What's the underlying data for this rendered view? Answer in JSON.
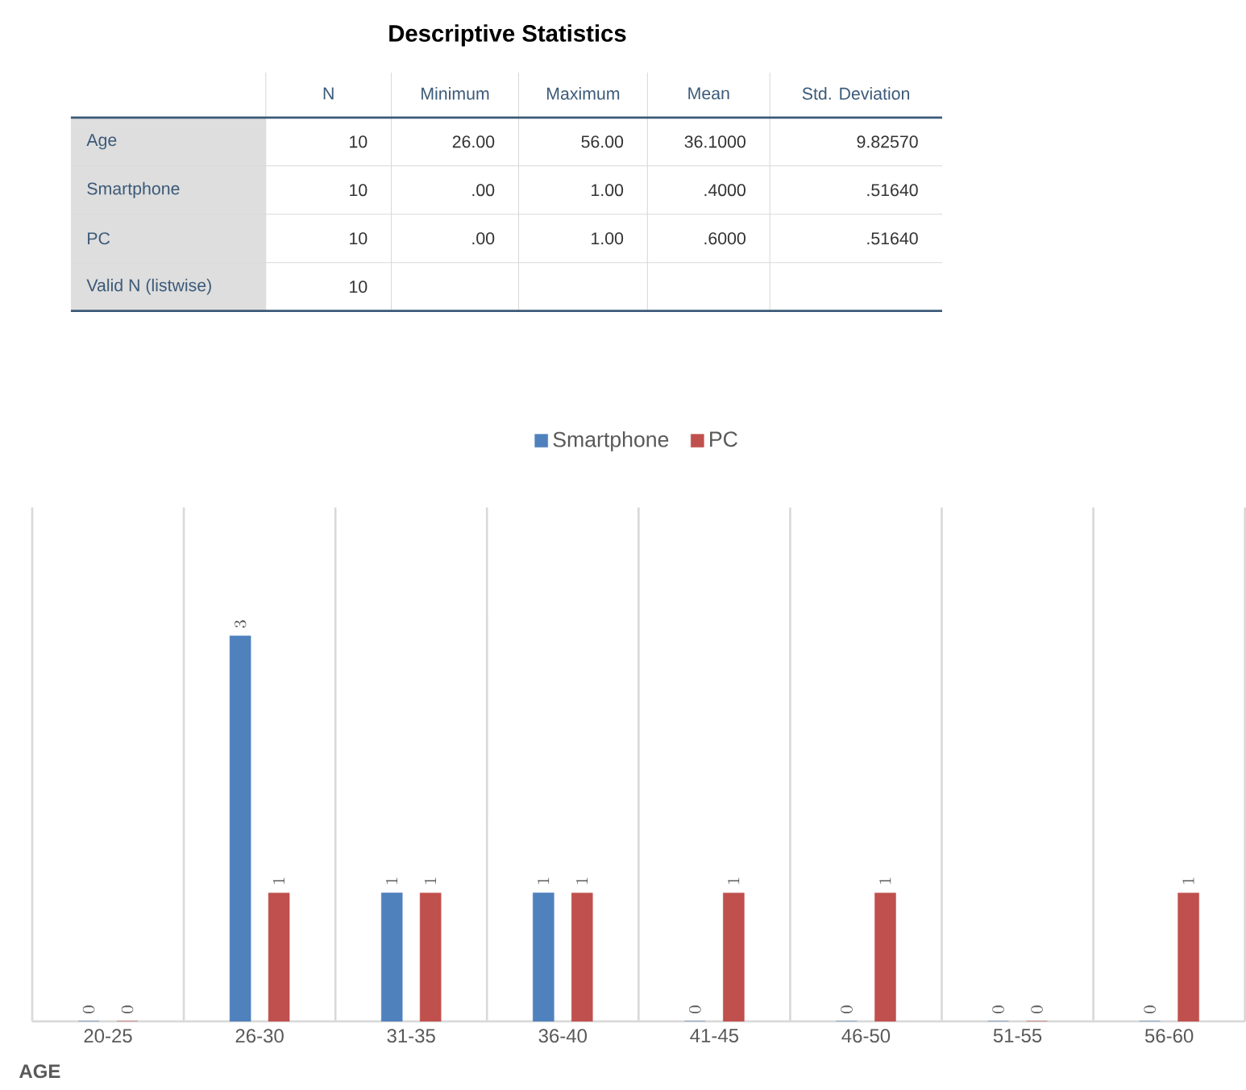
{
  "chart_data": [
    {
      "type": "other",
      "title": "Descriptive Statistics",
      "categories": [
        "N",
        "Minimum",
        "Maximum",
        "Mean",
        "Std. Deviation"
      ],
      "y_categories": [
        "Age",
        "Smartphone",
        "PC",
        "Valid N (listwise)"
      ],
      "cell_labels": [
        [
          "10",
          "26.00",
          "56.00",
          "36.1000",
          "9.82570"
        ],
        [
          "10",
          ".00",
          "1.00",
          ".4000",
          ".51640"
        ],
        [
          "10",
          ".00",
          "1.00",
          ".6000",
          ".51640"
        ],
        [
          "10",
          null,
          null,
          null,
          null
        ]
      ]
    },
    {
      "type": "bar",
      "xlabel": "AGE",
      "categories": [
        "20-25",
        "26-30",
        "31-35",
        "36-40",
        "41-45",
        "46-50",
        "51-55",
        "56-60"
      ],
      "series": [
        {
          "name": "Smartphone",
          "color": "#4f81bd",
          "values": [
            0,
            3,
            1,
            1,
            0,
            0,
            0,
            0
          ]
        },
        {
          "name": "PC",
          "color": "#c0504d",
          "values": [
            0,
            1,
            1,
            1,
            1,
            1,
            0,
            1
          ]
        }
      ],
      "data_labels": true,
      "grid": "x",
      "legend": "top"
    }
  ]
}
